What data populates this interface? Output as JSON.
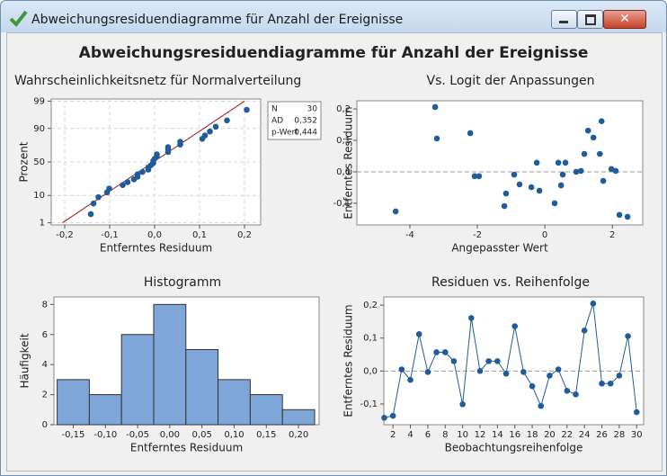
{
  "window_title": "Abweichungsresiduendiagramme für Anzahl der Ereignisse",
  "title": "Abweichungsresiduendiagramme für Anzahl der Ereignisse",
  "chart_data": [
    {
      "type": "scatter",
      "title": "Wahrscheinlichkeitsnetz für Normalverteilung",
      "x_label": "Entferntes Residuum",
      "y_label": "Prozent",
      "yscale": "probability",
      "grid": true,
      "color": "#1f5c99",
      "line_color": "#a01010",
      "x": [
        -0.142,
        -0.136,
        -0.125,
        -0.106,
        -0.101,
        -0.071,
        -0.06,
        -0.046,
        -0.038,
        -0.038,
        -0.027,
        -0.014,
        -0.014,
        -0.008,
        -0.003,
        -0.003,
        0.0,
        0.005,
        0.005,
        0.03,
        0.03,
        0.03,
        0.057,
        0.057,
        0.106,
        0.112,
        0.123,
        0.136,
        0.161,
        0.205
      ],
      "values": [
        2.3,
        5.6,
        8.9,
        12.2,
        15.5,
        18.8,
        22.0,
        25.3,
        28.6,
        31.9,
        35.2,
        38.5,
        41.8,
        45.1,
        48.4,
        51.6,
        54.9,
        58.2,
        61.5,
        64.8,
        68.1,
        71.4,
        74.7,
        78.0,
        81.2,
        84.5,
        87.8,
        91.1,
        94.4,
        97.7
      ],
      "fit_line": {
        "x": [
          -0.205,
          0.2
        ],
        "y": [
          1.0,
          99.0
        ]
      },
      "xlim": [
        -0.23,
        0.236
      ],
      "ylim": [
        0.8,
        99.2
      ],
      "xticks": [
        {
          "value": -0.2,
          "label": "-0,2"
        },
        {
          "value": -0.1,
          "label": "-0,1"
        },
        {
          "value": 0.0,
          "label": "0,0"
        },
        {
          "value": 0.1,
          "label": "0,1"
        },
        {
          "value": 0.2,
          "label": "0,2"
        }
      ],
      "yticks": [
        1,
        10,
        50,
        90,
        99
      ],
      "stats": [
        {
          "label": "N",
          "value": "30"
        },
        {
          "label": "AD",
          "value": "0,352"
        },
        {
          "label": "p-Wert",
          "value": "0,444"
        }
      ]
    },
    {
      "type": "scatter",
      "title": "Vs. Logit der Anpassungen",
      "x_label": "Angepasster Wert",
      "y_label": "Entferntes Residuum",
      "color": "#1f5c99",
      "reference_line": 0,
      "x": [
        -4.42,
        -3.25,
        -3.2,
        -2.21,
        -2.08,
        -1.95,
        -1.2,
        -1.15,
        -0.91,
        -0.75,
        -0.4,
        -0.24,
        -0.16,
        0.29,
        0.4,
        0.48,
        0.53,
        0.61,
        0.93,
        1.07,
        1.17,
        1.28,
        1.44,
        1.63,
        1.68,
        1.73,
        1.97,
        2.1,
        2.21,
        2.45
      ],
      "values": [
        -0.126,
        0.206,
        0.106,
        0.123,
        -0.014,
        -0.014,
        -0.109,
        -0.069,
        -0.009,
        -0.04,
        -0.049,
        0.029,
        -0.06,
        -0.1,
        0.029,
        -0.043,
        -0.009,
        0.029,
        0.0,
        0.003,
        0.057,
        0.131,
        0.109,
        0.057,
        0.161,
        -0.029,
        0.009,
        0.003,
        -0.137,
        -0.143
      ],
      "xlim": [
        -5.57,
        2.9
      ],
      "ylim": [
        -0.169,
        0.226
      ],
      "xticks": [
        -4,
        -2,
        0,
        2
      ],
      "yticks": [
        {
          "value": -0.1,
          "label": "-0,1"
        },
        {
          "value": 0.0,
          "label": "0,0"
        },
        {
          "value": 0.1,
          "label": "0,1"
        },
        {
          "value": 0.2,
          "label": "0,2"
        }
      ]
    },
    {
      "type": "histogram",
      "title": "Histogramm",
      "x_label": "Entferntes Residuum",
      "y_label": "Häufigkeit",
      "color": "#7ea6d9",
      "bins": [
        -0.175,
        -0.125,
        -0.075,
        -0.025,
        0.025,
        0.075,
        0.125,
        0.175,
        0.225
      ],
      "values": [
        3,
        2,
        6,
        8,
        5,
        3,
        2,
        1
      ],
      "xlim": [
        -0.18,
        0.232
      ],
      "ylim": [
        0,
        8.5
      ],
      "xticks": [
        {
          "value": -0.15,
          "label": "-0,15"
        },
        {
          "value": -0.1,
          "label": "-0,10"
        },
        {
          "value": -0.05,
          "label": "-0,05"
        },
        {
          "value": 0.0,
          "label": "0,00"
        },
        {
          "value": 0.05,
          "label": "0,05"
        },
        {
          "value": 0.1,
          "label": "0,10"
        },
        {
          "value": 0.15,
          "label": "0,15"
        },
        {
          "value": 0.2,
          "label": "0,20"
        }
      ],
      "yticks": [
        0,
        2,
        4,
        6,
        8
      ]
    },
    {
      "type": "line",
      "title": "Residuen vs. Reihenfolge",
      "x_label": "Beobachtungsreihenfolge",
      "y_label": "Entferntes Residuum",
      "color": "#1f5c99",
      "reference_line": 0,
      "x": [
        1,
        2,
        3,
        4,
        5,
        6,
        7,
        8,
        9,
        10,
        11,
        12,
        13,
        14,
        15,
        16,
        17,
        18,
        19,
        20,
        21,
        22,
        23,
        24,
        25,
        26,
        27,
        28,
        29,
        30
      ],
      "values": [
        -0.142,
        -0.136,
        0.005,
        -0.027,
        0.112,
        -0.003,
        0.057,
        0.057,
        0.03,
        -0.101,
        0.161,
        0.0,
        0.03,
        0.03,
        -0.008,
        0.136,
        -0.003,
        -0.046,
        -0.106,
        -0.014,
        0.005,
        -0.06,
        -0.071,
        0.123,
        0.205,
        -0.038,
        -0.038,
        -0.014,
        0.106,
        -0.125
      ],
      "xlim": [
        0.95,
        30.8
      ],
      "ylim": [
        -0.163,
        0.225
      ],
      "xticks": [
        2,
        4,
        6,
        8,
        10,
        12,
        14,
        16,
        18,
        20,
        22,
        24,
        26,
        28,
        30
      ],
      "yticks": [
        {
          "value": -0.1,
          "label": "-0,1"
        },
        {
          "value": 0.0,
          "label": "0,0"
        },
        {
          "value": 0.1,
          "label": "0,1"
        },
        {
          "value": 0.2,
          "label": "0,2"
        }
      ]
    }
  ]
}
